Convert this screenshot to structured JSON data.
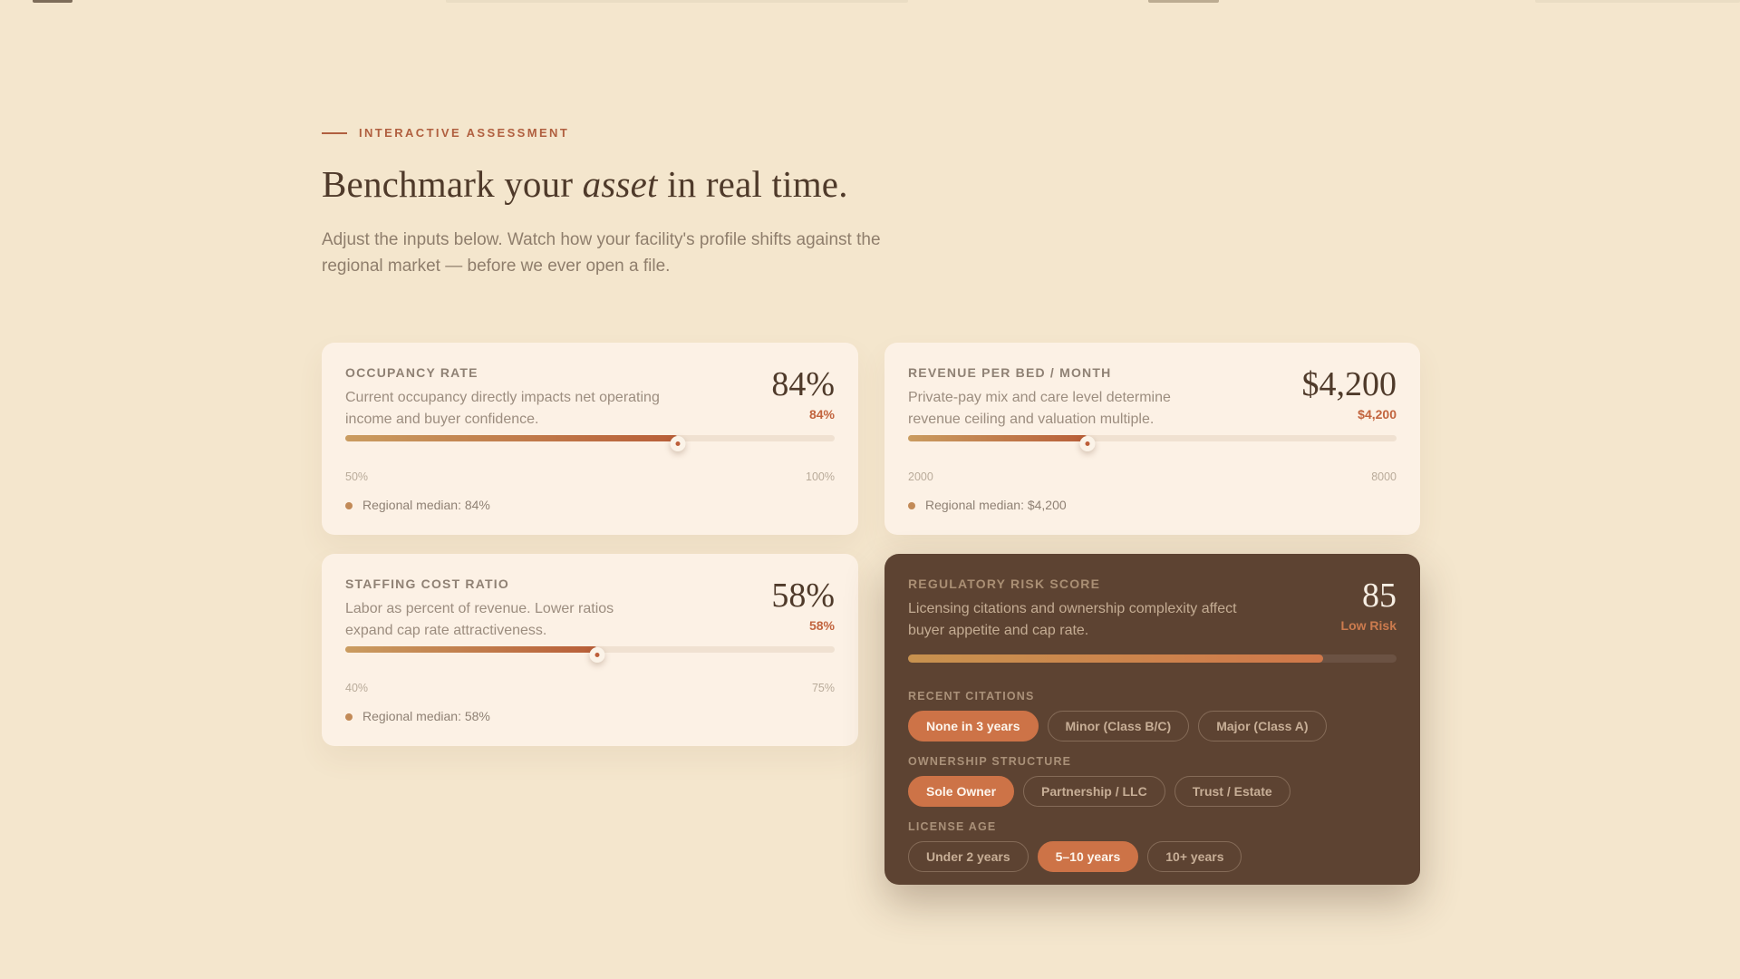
{
  "page": {
    "background": "#f4e6cd",
    "accent": "#b05f3f",
    "card_background": "#fcf1e5",
    "dark_card_background": "#5d4332",
    "selected_chip_color": "#cd7347"
  },
  "header": {
    "eyebrow": "INTERACTIVE ASSESSMENT",
    "title_prefix": "Benchmark your ",
    "title_emphasis": "asset",
    "title_suffix": " in real time.",
    "subtitle": "Adjust the inputs below. Watch how your facility's profile shifts against the regional market — before we ever open a file."
  },
  "cards": {
    "occupancy": {
      "label": "OCCUPANCY RATE",
      "description": "Current occupancy directly impacts net operating income and buyer confidence.",
      "value_display": "84%",
      "value_sub": "84%",
      "value": 84,
      "min": 50,
      "max": 100,
      "min_label": "50%",
      "max_label": "100%",
      "median": "Regional median: 84%"
    },
    "revenue": {
      "label": "REVENUE PER BED / MONTH",
      "description": "Private-pay mix and care level determine revenue ceiling and valuation multiple.",
      "value_display": "$4,200",
      "value_sub": "$4,200",
      "value": 4200,
      "min": 2000,
      "max": 8000,
      "min_label": "2000",
      "max_label": "8000",
      "median": "Regional median: $4,200"
    },
    "staffing": {
      "label": "STAFFING COST RATIO",
      "description": "Labor as percent of revenue. Lower ratios expand cap rate attractiveness.",
      "value_display": "58%",
      "value_sub": "58%",
      "value": 58,
      "min": 40,
      "max": 75,
      "min_label": "40%",
      "max_label": "75%",
      "median": "Regional median: 58%"
    },
    "risk": {
      "label": "REGULATORY RISK SCORE",
      "description": "Licensing citations and ownership complexity affect buyer appetite and cap rate.",
      "value_display": "85",
      "value_sub": "Low Risk",
      "value": 85,
      "min": 0,
      "max": 100,
      "groups": [
        {
          "label": "RECENT CITATIONS",
          "options": [
            {
              "label": "None in 3 years",
              "selected": true
            },
            {
              "label": "Minor (Class B/C)",
              "selected": false
            },
            {
              "label": "Major (Class A)",
              "selected": false
            }
          ]
        },
        {
          "label": "OWNERSHIP STRUCTURE",
          "options": [
            {
              "label": "Sole Owner",
              "selected": true
            },
            {
              "label": "Partnership / LLC",
              "selected": false
            },
            {
              "label": "Trust / Estate",
              "selected": false
            }
          ]
        },
        {
          "label": "LICENSE AGE",
          "options": [
            {
              "label": "Under 2 years",
              "selected": false
            },
            {
              "label": "5–10 years",
              "selected": true
            },
            {
              "label": "10+ years",
              "selected": false
            }
          ]
        }
      ]
    }
  }
}
